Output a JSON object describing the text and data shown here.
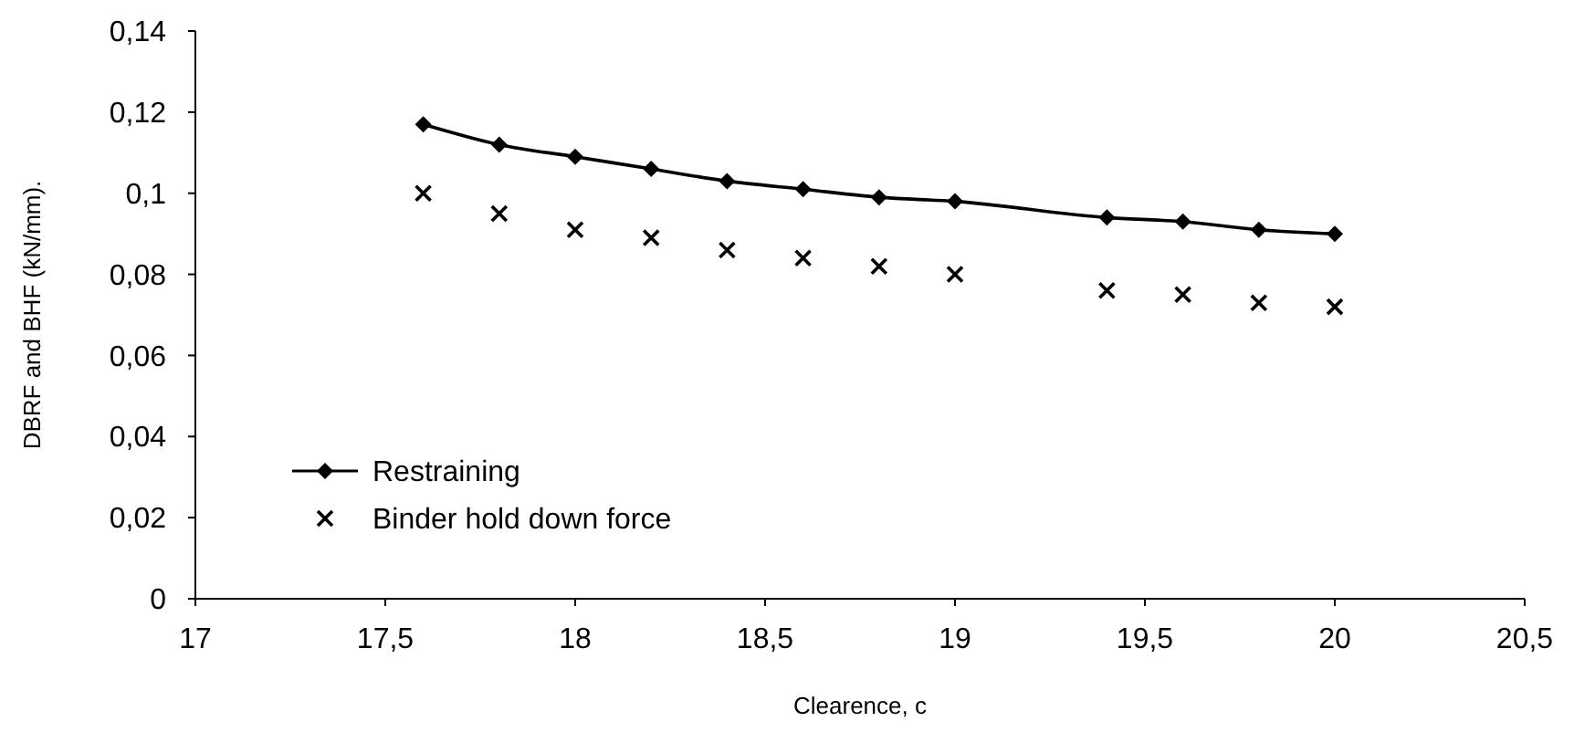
{
  "chart_data": {
    "type": "line",
    "xlabel": "Clearence, c",
    "ylabel": "DBRF and BHF (kN/mm).",
    "xlim": [
      17,
      20.5
    ],
    "xticks": [
      17,
      {
        "value": 17.5,
        "label": "17,5"
      },
      18,
      {
        "value": 18.5,
        "label": "18,5"
      },
      19,
      {
        "value": 19.5,
        "label": "19,5"
      },
      20,
      {
        "value": 20.5,
        "label": "20,5"
      }
    ],
    "ylim": [
      0,
      0.14
    ],
    "yticks": [
      0,
      {
        "value": 0.02,
        "label": "0,02"
      },
      {
        "value": 0.04,
        "label": "0,04"
      },
      {
        "value": 0.06,
        "label": "0,06"
      },
      {
        "value": 0.08,
        "label": "0,08"
      },
      {
        "value": 0.1,
        "label": "0,1"
      },
      {
        "value": 0.12,
        "label": "0,12"
      },
      {
        "value": 0.14,
        "label": "0,14"
      }
    ],
    "x": [
      17.6,
      17.8,
      18,
      18.2,
      18.4,
      18.6,
      18.8,
      19,
      19.4,
      19.6,
      19.8,
      20
    ],
    "grid": false,
    "legend": "bottom left",
    "series": [
      {
        "name": "Restraining",
        "marker": "diamond",
        "color": "#000000",
        "values": [
          0.117,
          0.112,
          0.109,
          0.106,
          0.103,
          0.101,
          0.099,
          0.098,
          0.094,
          0.093,
          0.091,
          0.09
        ]
      },
      {
        "name": "Binder hold down force",
        "type": "scatter",
        "marker": "cross",
        "color": "#000000",
        "values": [
          0.1,
          0.095,
          0.091,
          0.089,
          0.086,
          0.084,
          0.082,
          0.08,
          0.076,
          0.075,
          0.073,
          0.072
        ]
      }
    ]
  }
}
